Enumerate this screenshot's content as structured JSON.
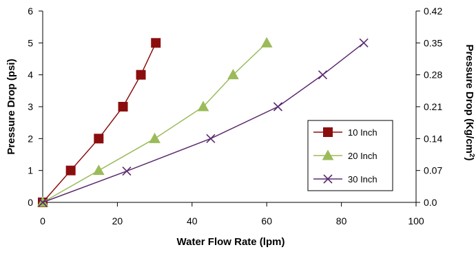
{
  "chart_data": {
    "type": "line",
    "xlabel": "Water Flow Rate (lpm)",
    "ylabel_left": "Pressure Drop (psi)",
    "ylabel_right_prefix": "Pressure Drop (Kg/cm",
    "ylabel_right_sup": "2",
    "ylabel_right_suffix": ")",
    "xlim": [
      0,
      100
    ],
    "ylim_left": [
      0,
      6
    ],
    "ylim_right": [
      0.0,
      0.42
    ],
    "x_ticks": [
      "0",
      "20",
      "40",
      "60",
      "80",
      "100"
    ],
    "y_left_ticks": [
      "0",
      "1",
      "2",
      "3",
      "4",
      "5",
      "6"
    ],
    "y_right_ticks": [
      "0.0",
      "0.07",
      "0.14",
      "0.21",
      "0.28",
      "0.35",
      "0.42"
    ],
    "grid": false,
    "legend_position": "right",
    "series": [
      {
        "name": "10 Inch",
        "color": "#8b0e0e",
        "marker": "square",
        "x": [
          0,
          7.5,
          15,
          21.5,
          26.3,
          30.3
        ],
        "y": [
          0,
          1,
          2,
          3,
          4,
          5
        ]
      },
      {
        "name": "20 Inch",
        "color": "#9bbb59",
        "marker": "triangle",
        "x": [
          0,
          15,
          30,
          43,
          51,
          60
        ],
        "y": [
          0,
          1,
          2,
          3,
          4,
          5
        ]
      },
      {
        "name": "30 Inch",
        "color": "#5b2a6e",
        "marker": "x",
        "x": [
          0,
          22.5,
          45,
          63,
          75,
          86
        ],
        "y": [
          0,
          0.98,
          2,
          3,
          4,
          5
        ]
      }
    ]
  }
}
